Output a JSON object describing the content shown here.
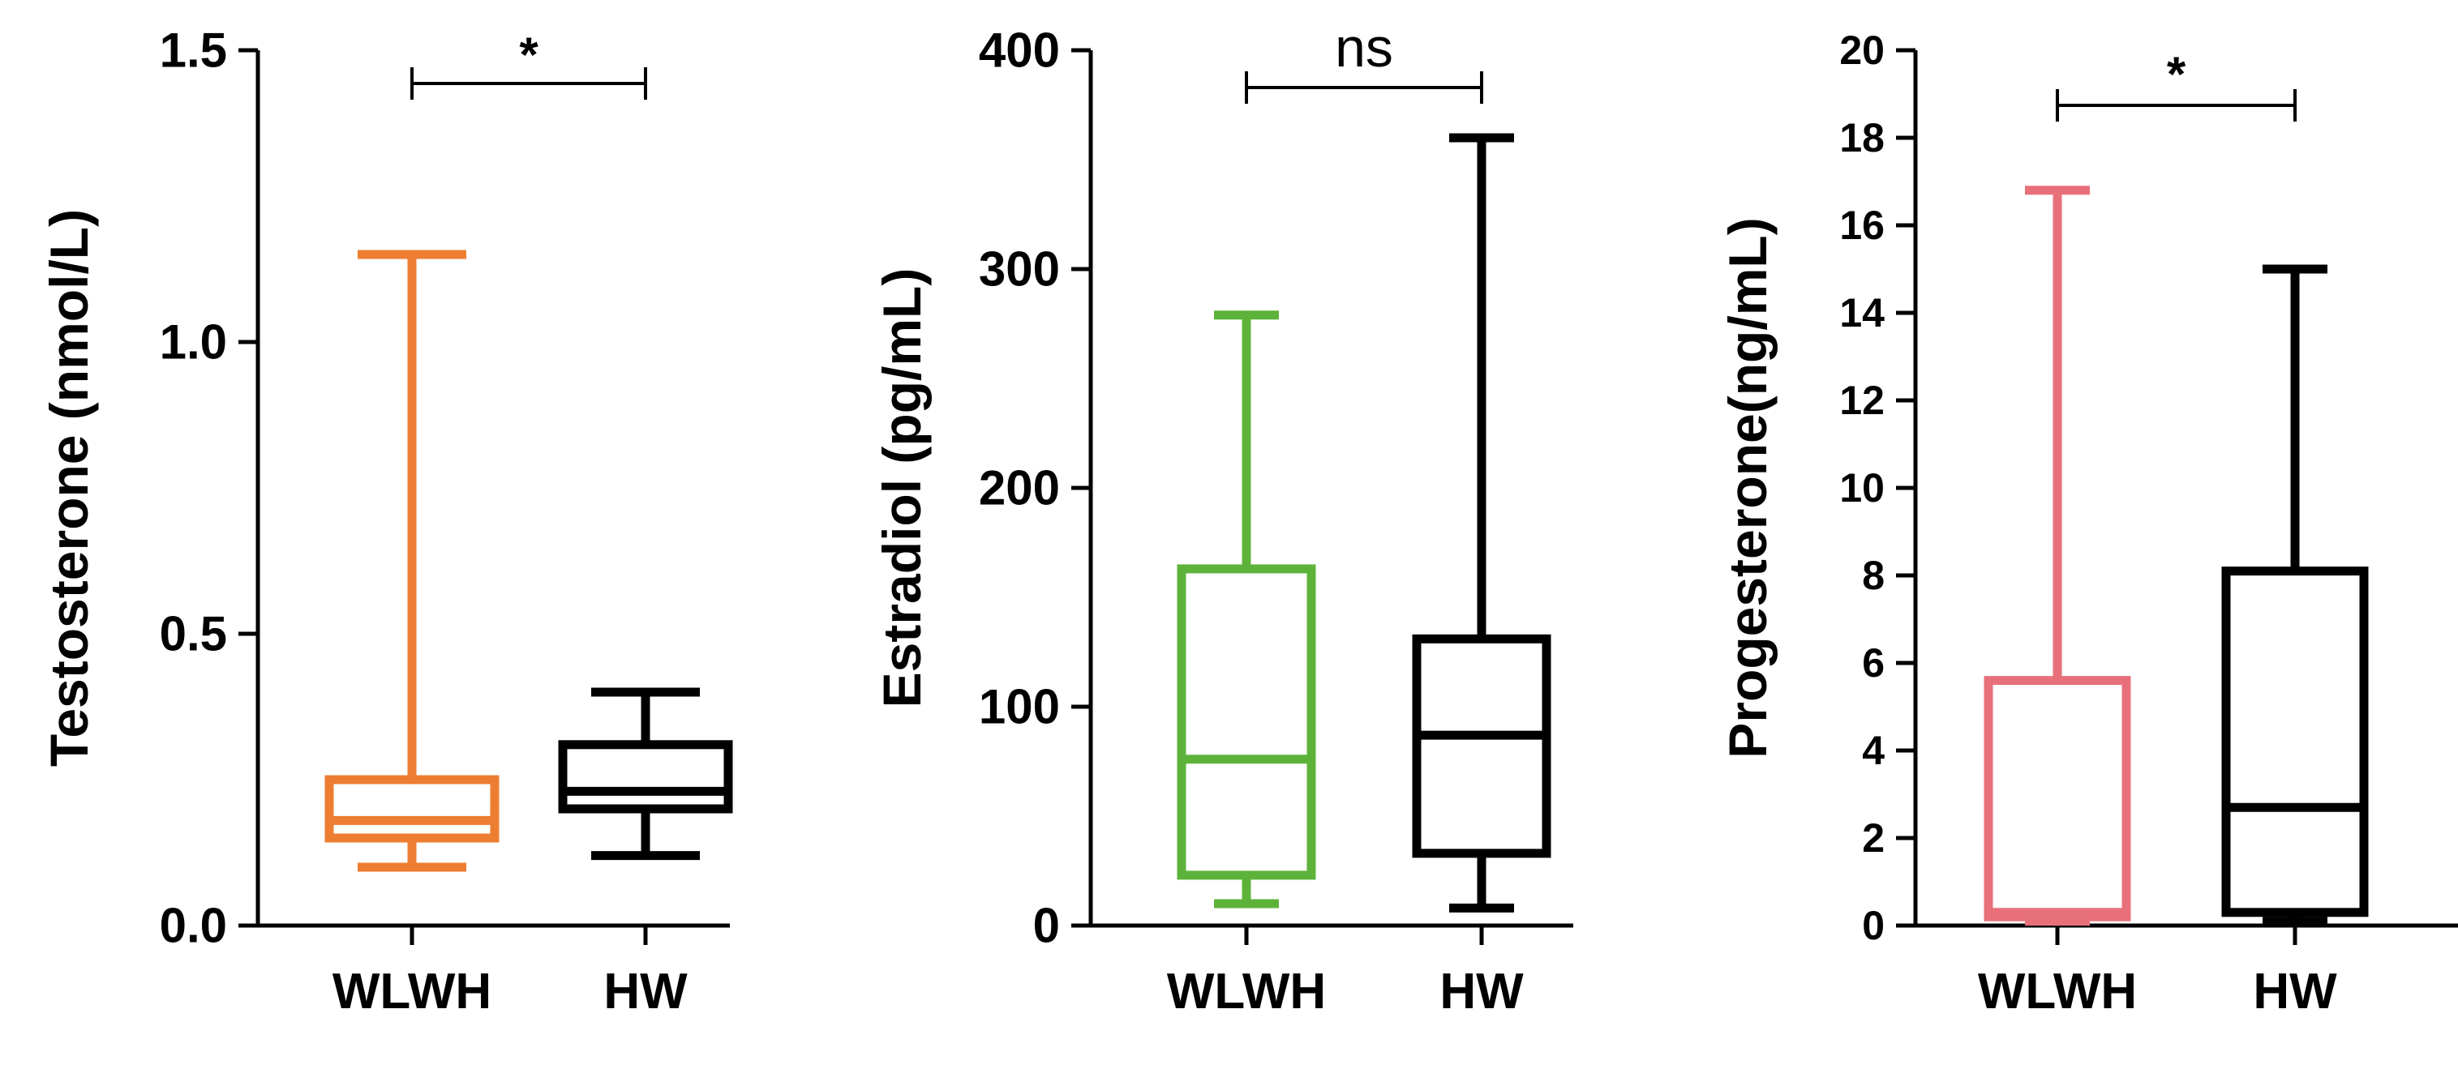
{
  "chart_data": [
    {
      "type": "box",
      "ylabel": "Testosterone (nmol/L)",
      "ylim": [
        0,
        1.5
      ],
      "yticks": [
        "0.0",
        "0.5",
        "1.0",
        "1.5"
      ],
      "yticks_values": [
        0,
        0.5,
        1.0,
        1.5
      ],
      "categories": [
        "WLWH",
        "HW"
      ],
      "boxes": [
        {
          "category": "WLWH",
          "min": 0.1,
          "q1": 0.15,
          "median": 0.18,
          "q3": 0.25,
          "max": 1.15,
          "color": "#ED7D31"
        },
        {
          "category": "HW",
          "min": 0.12,
          "q1": 0.2,
          "median": 0.23,
          "q3": 0.31,
          "max": 0.4,
          "color": "#000000"
        }
      ],
      "annotation": {
        "label": "*",
        "between": [
          "WLWH",
          "HW"
        ]
      }
    },
    {
      "type": "box",
      "ylabel": "Estradiol (pg/mL)",
      "ylim": [
        0,
        400
      ],
      "yticks": [
        "0",
        "100",
        "200",
        "300",
        "400"
      ],
      "yticks_values": [
        0,
        100,
        200,
        300,
        400
      ],
      "categories": [
        "WLWH",
        "HW"
      ],
      "boxes": [
        {
          "category": "WLWH",
          "min": 10,
          "q1": 23,
          "median": 76,
          "q3": 163,
          "max": 279,
          "color": "#5DB33A"
        },
        {
          "category": "HW",
          "min": 8,
          "q1": 33,
          "median": 87,
          "q3": 131,
          "max": 360,
          "color": "#000000"
        }
      ],
      "annotation": {
        "label": "ns",
        "between": [
          "WLWH",
          "HW"
        ]
      }
    },
    {
      "type": "box",
      "ylabel": "Progesterone(ng/mL)",
      "ylim": [
        0,
        20
      ],
      "yticks": [
        "0",
        "2",
        "4",
        "6",
        "8",
        "10",
        "12",
        "14",
        "16",
        "18",
        "20"
      ],
      "yticks_values": [
        0,
        2,
        4,
        6,
        8,
        10,
        12,
        14,
        16,
        18,
        20
      ],
      "categories": [
        "WLWH",
        "HW"
      ],
      "boxes": [
        {
          "category": "WLWH",
          "min": 0.1,
          "q1": 0.2,
          "median": 0.3,
          "q3": 5.6,
          "max": 16.8,
          "color": "#E8707A"
        },
        {
          "category": "HW",
          "min": 0.1,
          "q1": 0.3,
          "median": 2.7,
          "q3": 8.1,
          "max": 15.0,
          "color": "#000000"
        }
      ],
      "annotation": {
        "label": "*",
        "between": [
          "WLWH",
          "HW"
        ]
      }
    }
  ]
}
